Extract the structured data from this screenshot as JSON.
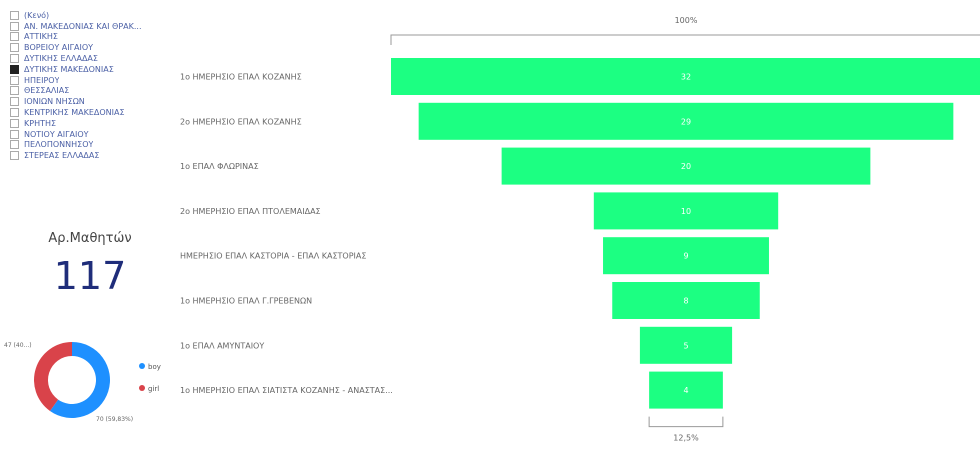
{
  "slicer": {
    "items": [
      {
        "label": "(Κενό)",
        "checked": false
      },
      {
        "label": "ΑΝ. ΜΑΚΕΔΟΝΙΑΣ ΚΑΙ ΘΡΑΚ...",
        "checked": false
      },
      {
        "label": "ΑΤΤΙΚΗΣ",
        "checked": false
      },
      {
        "label": "ΒΟΡΕΙΟΥ ΑΙΓΑΙΟΥ",
        "checked": false
      },
      {
        "label": "ΔΥΤΙΚΗΣ ΕΛΛΑΔΑΣ",
        "checked": false
      },
      {
        "label": "ΔΥΤΙΚΗΣ ΜΑΚΕΔΟΝΙΑΣ",
        "checked": true
      },
      {
        "label": "ΗΠΕΙΡΟΥ",
        "checked": false
      },
      {
        "label": "ΘΕΣΣΑΛΙΑΣ",
        "checked": false
      },
      {
        "label": "ΙΟΝΙΩΝ ΝΗΣΩΝ",
        "checked": false
      },
      {
        "label": "ΚΕΝΤΡΙΚΗΣ ΜΑΚΕΔΟΝΙΑΣ",
        "checked": false
      },
      {
        "label": "ΚΡΗΤΗΣ",
        "checked": false
      },
      {
        "label": "ΝΟΤΙΟΥ ΑΙΓΑΙΟΥ",
        "checked": false
      },
      {
        "label": "ΠΕΛΟΠΟΝΝΗΣΟΥ",
        "checked": false
      },
      {
        "label": "ΣΤΕΡΕΑΣ ΕΛΛΑΔΑΣ",
        "checked": false
      }
    ]
  },
  "card": {
    "title": "Αρ.Μαθητών",
    "value": "117"
  },
  "colors": {
    "funnel": "#1cff82",
    "donut_blue": "#1e90ff",
    "donut_red": "#d9434a",
    "slicer_text": "#4a5fa5",
    "card_value": "#1f2d7a"
  },
  "chart_data": [
    {
      "type": "funnel",
      "top_label": "100%",
      "bottom_label": "12,5%",
      "categories": [
        "1o ΗΜΕΡΗΣΙΟ ΕΠΑΛ ΚΟΖΑΝΗΣ",
        "2o ΗΜΕΡΗΣΙΟ ΕΠΑΛ ΚΟΖΑΝΗΣ",
        "1o ΕΠΑΛ ΦΛΩΡΙΝΑΣ",
        "2o ΗΜΕΡΗΣΙΟ ΕΠΑΛ ΠΤΟΛΕΜΑΙΔΑΣ",
        "ΗΜΕΡΗΣΙΟ ΕΠΑΛ ΚΑΣΤΟΡΙΑ - ΕΠΑΛ ΚΑΣΤΟΡΙΑΣ",
        "1o ΗΜΕΡΗΣΙΟ ΕΠΑΛ Γ.ΓΡΕΒΕΝΩΝ",
        "1o ΕΠΑΛ ΑΜΥΝΤΑΙΟΥ",
        "1o ΗΜΕΡΗΣΙΟ ΕΠΑΛ ΣΙΑΤΙΣΤΑ ΚΟΖΑΝΗΣ - ΑΝΑΣΤΑΣ..."
      ],
      "values": [
        32,
        29,
        20,
        10,
        9,
        8,
        5,
        4
      ]
    },
    {
      "type": "pie",
      "variant": "donut",
      "labels": [
        "boy",
        "girl"
      ],
      "values": [
        70,
        47
      ],
      "data_labels": [
        "47 (40...)",
        "70 (59,83%)"
      ],
      "legend": "right"
    }
  ]
}
